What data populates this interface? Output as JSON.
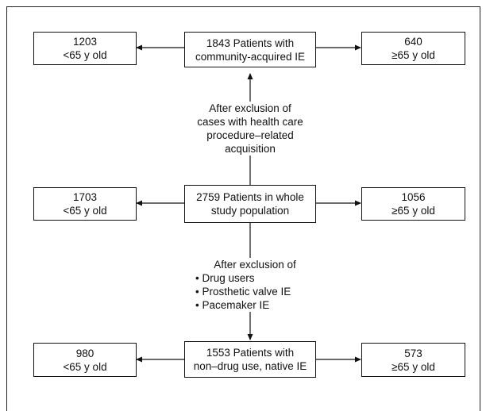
{
  "diagram": {
    "rows": [
      {
        "left": {
          "count": "1203",
          "label": "<65 y old"
        },
        "center": {
          "line1": "1843 Patients with",
          "line2": "community-acquired IE"
        },
        "right": {
          "count": "640",
          "label": "≥65 y old"
        }
      },
      {
        "left": {
          "count": "1703",
          "label": "<65 y old"
        },
        "center": {
          "line1": "2759 Patients in whole",
          "line2": "study population"
        },
        "right": {
          "count": "1056",
          "label": "≥65 y old"
        }
      },
      {
        "left": {
          "count": "980",
          "label": "<65 y old"
        },
        "center": {
          "line1": "1553 Patients with",
          "line2": "non–drug use, native IE"
        },
        "right": {
          "count": "573",
          "label": "≥65 y old"
        }
      }
    ],
    "exclusion1": {
      "lines": [
        "After exclusion of",
        "cases with health care",
        "procedure–related",
        "acquisition"
      ]
    },
    "exclusion2": {
      "heading": "After exclusion of",
      "bullets": [
        "• Drug users",
        "• Prosthetic valve IE",
        "• Pacemaker IE"
      ]
    }
  }
}
